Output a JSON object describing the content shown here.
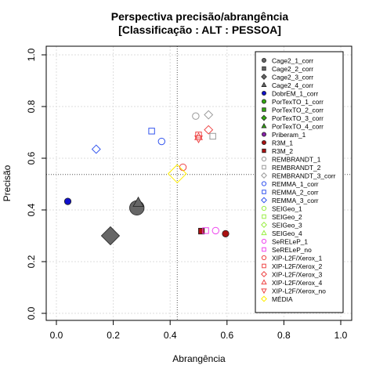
{
  "chart_data": {
    "type": "scatter",
    "title": "Perspectiva precisão/abrangência",
    "subtitle": "[Classificação : ALT : PESSOA]",
    "xlabel": "Abrangência",
    "ylabel": "Precisão",
    "xlim": [
      0,
      1
    ],
    "ylim": [
      0,
      1
    ],
    "xticks": [
      "0.0",
      "0.2",
      "0.4",
      "0.6",
      "0.8",
      "1.0"
    ],
    "yticks": [
      "0.0",
      "0.2",
      "0.4",
      "0.6",
      "0.8",
      "1.0"
    ],
    "grid": true,
    "reference_lines": {
      "x": 0.425,
      "y": 0.537
    },
    "legend_position": "right",
    "series": [
      {
        "name": "Cage2_1_corr",
        "shape": "circle",
        "filled": true,
        "color": "#666666",
        "points": [
          [
            0.283,
            0.408
          ]
        ],
        "size": 2.2
      },
      {
        "name": "Cage2_2_corr",
        "shape": "square",
        "filled": true,
        "color": "#666666",
        "points": []
      },
      {
        "name": "Cage2_3_corr",
        "shape": "diamond",
        "filled": true,
        "color": "#666666",
        "points": [
          [
            0.19,
            0.3
          ]
        ],
        "size": 2.2
      },
      {
        "name": "Cage2_4_corr",
        "shape": "triangle",
        "filled": true,
        "color": "#666666",
        "points": [
          [
            0.288,
            0.428
          ]
        ],
        "size": 1.4
      },
      {
        "name": "DobrEM_1_corr",
        "shape": "circle",
        "filled": true,
        "color": "#1010cc",
        "points": [
          [
            0.04,
            0.433
          ]
        ]
      },
      {
        "name": "PorTexTO_1_corr",
        "shape": "circle",
        "filled": true,
        "color": "#33aa11",
        "points": []
      },
      {
        "name": "PorTexTO_2_corr",
        "shape": "square",
        "filled": true,
        "color": "#33aa11",
        "points": []
      },
      {
        "name": "PorTexTO_3_corr",
        "shape": "diamond",
        "filled": true,
        "color": "#33aa11",
        "points": []
      },
      {
        "name": "PorTexTO_4_corr",
        "shape": "triangle",
        "filled": true,
        "color": "#33aa11",
        "points": []
      },
      {
        "name": "Priberam_1",
        "shape": "circle",
        "filled": true,
        "color": "#8822aa",
        "points": []
      },
      {
        "name": "R3M_1",
        "shape": "circle",
        "filled": true,
        "color": "#aa1111",
        "points": [
          [
            0.595,
            0.308
          ]
        ]
      },
      {
        "name": "R3M_2",
        "shape": "square",
        "filled": true,
        "color": "#aa1111",
        "points": [
          [
            0.51,
            0.318
          ]
        ]
      },
      {
        "name": "REMBRANDT_1",
        "shape": "circle",
        "filled": false,
        "color": "#999999",
        "points": [
          [
            0.49,
            0.763
          ]
        ]
      },
      {
        "name": "REMBRANDT_2",
        "shape": "square",
        "filled": false,
        "color": "#999999",
        "points": [
          [
            0.55,
            0.685
          ]
        ]
      },
      {
        "name": "REMBRANDT_3_corr",
        "shape": "diamond",
        "filled": false,
        "color": "#999999",
        "points": [
          [
            0.535,
            0.768
          ]
        ]
      },
      {
        "name": "REMMA_1_corr",
        "shape": "circle",
        "filled": false,
        "color": "#3355ee",
        "points": [
          [
            0.37,
            0.665
          ]
        ]
      },
      {
        "name": "REMMA_2_corr",
        "shape": "square",
        "filled": false,
        "color": "#3355ee",
        "points": [
          [
            0.335,
            0.705
          ]
        ]
      },
      {
        "name": "REMMA_3_corr",
        "shape": "diamond",
        "filled": false,
        "color": "#3355ee",
        "points": [
          [
            0.14,
            0.635
          ]
        ]
      },
      {
        "name": "SEIGeo_1",
        "shape": "circle",
        "filled": false,
        "color": "#99ee44",
        "points": []
      },
      {
        "name": "SEIGeo_2",
        "shape": "square",
        "filled": false,
        "color": "#99ee44",
        "points": []
      },
      {
        "name": "SEIGeo_3",
        "shape": "diamond",
        "filled": false,
        "color": "#99ee44",
        "points": []
      },
      {
        "name": "SEIGeo_4",
        "shape": "triangle",
        "filled": false,
        "color": "#99ee44",
        "points": []
      },
      {
        "name": "SeRELeP_1",
        "shape": "circle",
        "filled": false,
        "color": "#ee44ee",
        "points": [
          [
            0.56,
            0.32
          ]
        ]
      },
      {
        "name": "SeRELeP_no",
        "shape": "square",
        "filled": false,
        "color": "#ee44ee",
        "points": [
          [
            0.525,
            0.32
          ]
        ]
      },
      {
        "name": "XIP-L2F/Xerox_1",
        "shape": "circle",
        "filled": false,
        "color": "#ee4444",
        "points": [
          [
            0.445,
            0.565
          ]
        ]
      },
      {
        "name": "XIP-L2F/Xerox_2",
        "shape": "square",
        "filled": false,
        "color": "#ee4444",
        "points": [
          [
            0.5,
            0.69
          ]
        ]
      },
      {
        "name": "XIP-L2F/Xerox_3",
        "shape": "diamond",
        "filled": false,
        "color": "#ee4444",
        "points": [
          [
            0.535,
            0.71
          ]
        ]
      },
      {
        "name": "XIP-L2F/Xerox_4",
        "shape": "triangle",
        "filled": false,
        "color": "#ee4444",
        "points": [
          [
            0.5,
            0.682
          ]
        ]
      },
      {
        "name": "XIP-L2F/Xerox_no",
        "shape": "triangle-down",
        "filled": false,
        "color": "#ee4444",
        "points": [
          [
            0.5,
            0.676
          ]
        ]
      },
      {
        "name": "MÉDIA",
        "shape": "diamond",
        "filled": false,
        "color": "#ffee00",
        "points": [
          [
            0.425,
            0.54
          ]
        ],
        "size": 2.2
      }
    ]
  }
}
